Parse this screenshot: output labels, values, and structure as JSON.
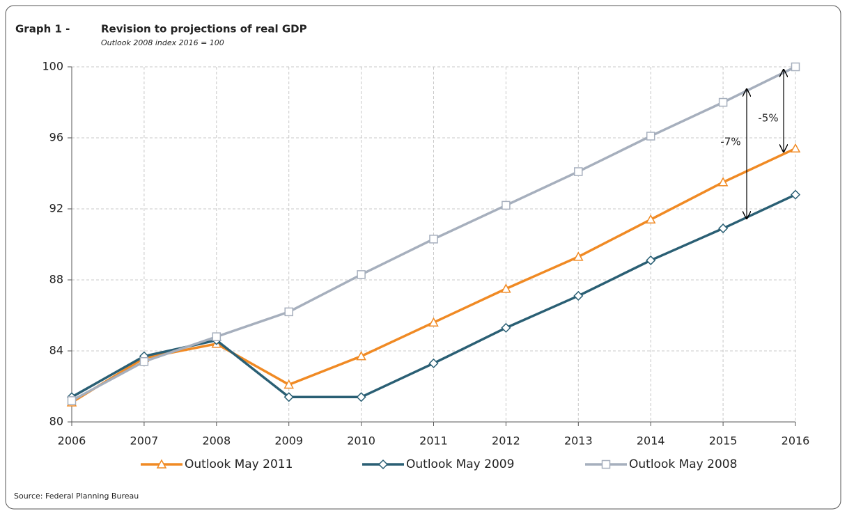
{
  "chart_data": {
    "type": "line",
    "label": "Graph 1 -",
    "title": "Revision to projections of real GDP",
    "subtitle": "Outlook 2008 index 2016 = 100",
    "source": "Source: Federal Planning Bureau",
    "annotations": [
      "-5%",
      "-7%"
    ],
    "x": [
      2006,
      2007,
      2008,
      2009,
      2010,
      2011,
      2012,
      2013,
      2014,
      2015,
      2016
    ],
    "xlim": [
      2006,
      2016
    ],
    "xticks": [
      2006,
      2007,
      2008,
      2009,
      2010,
      2011,
      2012,
      2013,
      2014,
      2015,
      2016
    ],
    "ylim": [
      80,
      100
    ],
    "yticks": [
      80,
      84,
      88,
      92,
      96,
      100
    ],
    "grid": true,
    "legend": "bottom",
    "series": [
      {
        "name": "Outlook May 2011",
        "color": "#f08a24",
        "marker": "triangle",
        "values": [
          81.1,
          83.6,
          84.4,
          82.1,
          83.7,
          85.6,
          87.5,
          89.3,
          91.4,
          93.5,
          95.4
        ]
      },
      {
        "name": "Outlook May 2009",
        "color": "#2a5f74",
        "marker": "diamond",
        "values": [
          81.4,
          83.7,
          84.6,
          81.4,
          81.4,
          83.3,
          85.3,
          87.1,
          89.1,
          90.9,
          92.8
        ]
      },
      {
        "name": "Outlook May 2008",
        "color": "#a6afbd",
        "marker": "square",
        "values": [
          81.2,
          83.4,
          84.8,
          86.2,
          88.3,
          90.3,
          92.2,
          94.1,
          96.1,
          98.0,
          100
        ]
      }
    ]
  }
}
